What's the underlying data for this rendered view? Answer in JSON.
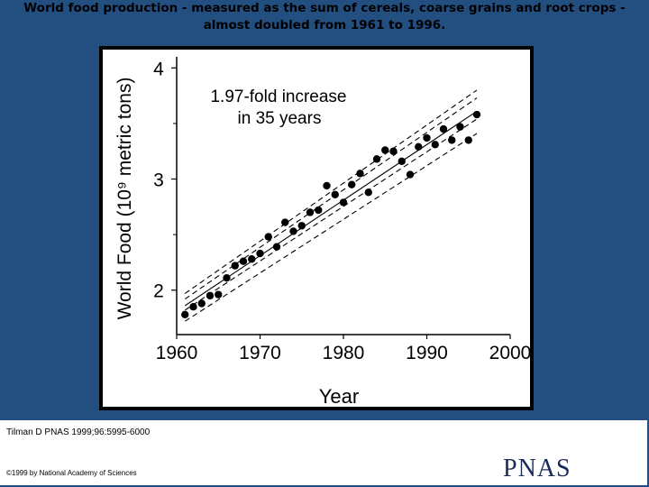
{
  "slide": {
    "title": "World food production - measured as the sum of cereals, coarse grains and root crops - almost doubled from 1961 to 1996."
  },
  "footer": {
    "citation": "Tilman D PNAS 1999;96:5995-6000",
    "copyright": "©1999 by National Academy of Sciences",
    "logo": "PNAS"
  },
  "chart_data": {
    "type": "scatter",
    "xlabel": "Year",
    "ylabel": "World Food (10⁹ metric tons)",
    "xlim": [
      1960,
      2000
    ],
    "ylim": [
      1.6,
      4.1
    ],
    "xticks": [
      1960,
      1970,
      1980,
      1990,
      2000
    ],
    "yticks": [
      2,
      3,
      4
    ],
    "annotation": [
      "1.97-fold increase",
      "in 35 years"
    ],
    "point_color": "#000000",
    "series": [
      {
        "x": [
          1961,
          1962,
          1963,
          1964,
          1965,
          1966,
          1967,
          1968,
          1969,
          1970,
          1971,
          1972,
          1973,
          1974,
          1975,
          1976,
          1977,
          1978,
          1979,
          1980,
          1981,
          1982,
          1983,
          1984,
          1985,
          1986,
          1987,
          1988,
          1989,
          1990,
          1991,
          1992,
          1993,
          1994,
          1995,
          1996
        ],
        "y": [
          1.78,
          1.85,
          1.88,
          1.95,
          1.96,
          2.11,
          2.22,
          2.26,
          2.28,
          2.33,
          2.48,
          2.39,
          2.61,
          2.53,
          2.58,
          2.7,
          2.72,
          2.94,
          2.86,
          2.79,
          2.95,
          3.05,
          2.88,
          3.18,
          3.26,
          3.25,
          3.16,
          3.04,
          3.29,
          3.37,
          3.31,
          3.45,
          3.35,
          3.47,
          3.35,
          3.58
        ]
      }
    ],
    "fit_lines": [
      {
        "style": "dashed",
        "from": [
          1961,
          1.97
        ],
        "to": [
          1996,
          3.8
        ]
      },
      {
        "style": "dashed",
        "from": [
          1961,
          1.92
        ],
        "to": [
          1996,
          3.73
        ]
      },
      {
        "style": "solid",
        "from": [
          1961,
          1.86
        ],
        "to": [
          1996,
          3.61
        ]
      },
      {
        "style": "dashed",
        "from": [
          1961,
          1.82
        ],
        "to": [
          1996,
          3.54
        ]
      },
      {
        "style": "dashed",
        "from": [
          1961,
          1.72
        ],
        "to": [
          1996,
          3.41
        ]
      }
    ]
  }
}
